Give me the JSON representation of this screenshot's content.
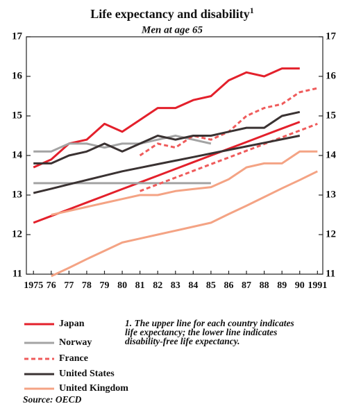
{
  "chart_data": {
    "type": "line",
    "title": "Life expectancy and disability",
    "title_note_mark": "1",
    "subtitle": "Men at age 65",
    "x": [
      1975,
      1976,
      1977,
      1978,
      1979,
      1980,
      1981,
      1982,
      1983,
      1984,
      1985,
      1986,
      1987,
      1988,
      1989,
      1990,
      1991
    ],
    "xlim": [
      1974.6,
      1991.3
    ],
    "xticks": [
      {
        "value": 1975,
        "label": "1975"
      },
      {
        "value": 1976,
        "label": "76"
      },
      {
        "value": 1977,
        "label": "77"
      },
      {
        "value": 1978,
        "label": "78"
      },
      {
        "value": 1979,
        "label": "79"
      },
      {
        "value": 1980,
        "label": "80"
      },
      {
        "value": 1981,
        "label": "81"
      },
      {
        "value": 1982,
        "label": "82"
      },
      {
        "value": 1983,
        "label": "83"
      },
      {
        "value": 1984,
        "label": "84"
      },
      {
        "value": 1985,
        "label": "85"
      },
      {
        "value": 1986,
        "label": "86"
      },
      {
        "value": 1987,
        "label": "87"
      },
      {
        "value": 1988,
        "label": "88"
      },
      {
        "value": 1989,
        "label": "89"
      },
      {
        "value": 1990,
        "label": "90"
      },
      {
        "value": 1991,
        "label": "1991"
      }
    ],
    "ylim": [
      11,
      17
    ],
    "yticks": [
      11,
      12,
      13,
      14,
      15,
      16,
      17
    ],
    "series": [
      {
        "name": "Japan",
        "color": "#e3202b",
        "dashed": false,
        "values": [
          13.7,
          13.9,
          14.3,
          14.4,
          14.8,
          14.6,
          14.9,
          15.2,
          15.2,
          15.4,
          15.5,
          15.9,
          16.1,
          16.0,
          16.2,
          16.2,
          null
        ],
        "values_lower": [
          12.3,
          12.47,
          12.64,
          12.81,
          12.98,
          13.15,
          13.32,
          13.49,
          13.66,
          13.83,
          14.0,
          14.17,
          14.34,
          14.51,
          14.68,
          14.85,
          null
        ]
      },
      {
        "name": "Norway",
        "color": "#a3a3a3",
        "dashed": false,
        "values": [
          14.1,
          14.1,
          14.3,
          14.3,
          14.2,
          14.3,
          14.3,
          14.4,
          14.5,
          14.4,
          14.3,
          null,
          null,
          null,
          null,
          null,
          null
        ],
        "values_lower": [
          13.3,
          13.3,
          13.3,
          13.3,
          13.3,
          13.3,
          13.3,
          13.3,
          13.3,
          13.3,
          13.3,
          null,
          null,
          null,
          null,
          null,
          null
        ]
      },
      {
        "name": "France",
        "color": "#ef5b5b",
        "dashed": true,
        "values": [
          null,
          null,
          null,
          null,
          null,
          null,
          14.0,
          14.3,
          14.2,
          14.5,
          14.4,
          14.6,
          15.0,
          15.2,
          15.3,
          15.6,
          15.7
        ],
        "values_lower": [
          null,
          null,
          null,
          null,
          null,
          null,
          13.1,
          13.27,
          13.44,
          13.61,
          13.78,
          13.95,
          14.12,
          14.29,
          14.46,
          14.63,
          14.8
        ]
      },
      {
        "name": "United States",
        "color": "#3a3232",
        "dashed": false,
        "values": [
          13.8,
          13.8,
          14.0,
          14.1,
          14.3,
          14.1,
          14.3,
          14.5,
          14.4,
          14.5,
          14.5,
          14.6,
          14.7,
          14.7,
          15.0,
          15.1,
          null
        ],
        "values_lower": [
          13.05,
          13.16,
          13.27,
          13.38,
          13.49,
          13.6,
          13.69,
          13.78,
          13.87,
          13.96,
          14.05,
          14.14,
          14.23,
          14.32,
          14.41,
          14.5,
          null
        ]
      },
      {
        "name": "United Kingdom",
        "color": "#f4a384",
        "dashed": false,
        "values": [
          null,
          12.5,
          12.6,
          12.7,
          12.8,
          12.9,
          13.0,
          13.0,
          13.1,
          13.15,
          13.2,
          13.4,
          13.7,
          13.8,
          13.8,
          14.1,
          14.1
        ],
        "values_lower": [
          null,
          10.95,
          11.16,
          11.38,
          11.59,
          11.8,
          11.9,
          12.0,
          12.1,
          12.2,
          12.3,
          12.52,
          12.73,
          12.95,
          13.17,
          13.38,
          13.6
        ]
      }
    ],
    "note_lines": [
      "1. The upper line for each country indicates",
      "life expectancy; the lower line indicates",
      "disability-free life expectancy."
    ],
    "source": "Source: OECD"
  }
}
